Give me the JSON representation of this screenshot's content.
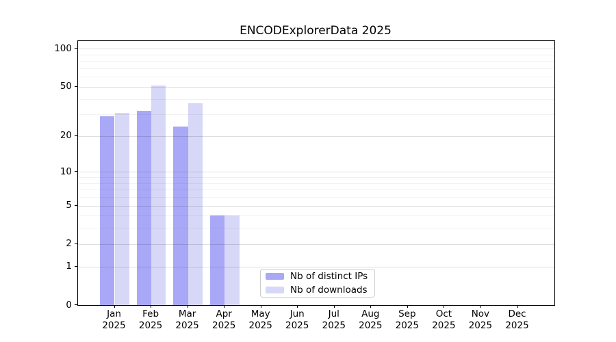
{
  "chart_data": {
    "type": "bar",
    "title": "ENCODExplorerData 2025",
    "year_label": "2025",
    "categories": [
      "Jan",
      "Feb",
      "Mar",
      "Apr",
      "May",
      "Jun",
      "Jul",
      "Aug",
      "Sep",
      "Oct",
      "Nov",
      "Dec"
    ],
    "series": [
      {
        "name": "Nb of distinct IPs",
        "color": "#a8a8f7",
        "values": [
          29,
          32,
          24,
          4,
          0,
          0,
          0,
          0,
          0,
          0,
          0,
          0
        ]
      },
      {
        "name": "Nb of downloads",
        "color": "#d7d7f7",
        "values": [
          31,
          51,
          37,
          4,
          0,
          0,
          0,
          0,
          0,
          0,
          0,
          0
        ]
      }
    ],
    "y_axis": {
      "scale": "log1p",
      "ylim": [
        0,
        115
      ],
      "major_ticks": [
        0,
        1,
        2,
        5,
        10,
        20,
        50,
        100
      ],
      "minor_ticks": [
        3,
        4,
        6,
        7,
        8,
        9,
        30,
        40,
        60,
        70,
        80,
        90
      ]
    },
    "legend_position": "lower center",
    "grid": true
  }
}
